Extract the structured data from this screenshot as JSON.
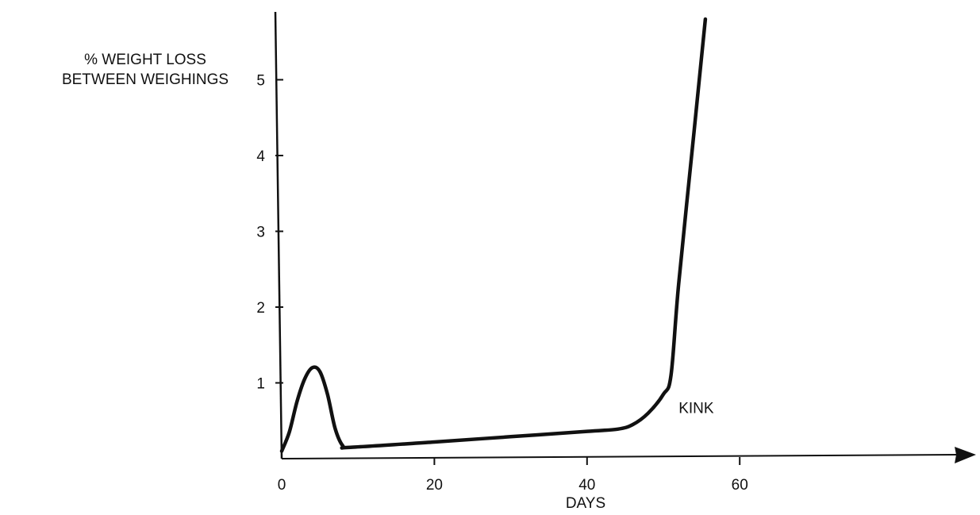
{
  "chart_data": {
    "type": "line",
    "ylabel_lines": [
      "% WEIGHT LOSS",
      "BETWEEN WEIGHINGS"
    ],
    "xlabel": "DAYS",
    "x_ticks": [
      0,
      20,
      40,
      60
    ],
    "y_ticks": [
      1,
      2,
      3,
      4,
      5
    ],
    "xlim": [
      0,
      90
    ],
    "ylim": [
      0,
      6
    ],
    "annotations": [
      {
        "text": "KINK",
        "x": 52,
        "y": 0.6
      }
    ],
    "series": [
      {
        "x": [
          0,
          1,
          2,
          3,
          4,
          5,
          6,
          7,
          8,
          9,
          20,
          30,
          40,
          44,
          46,
          48,
          50,
          51,
          52,
          54,
          55.5
        ],
        "values": [
          0.1,
          0.35,
          0.75,
          1.05,
          1.2,
          1.15,
          0.85,
          0.4,
          0.17,
          0.15,
          0.22,
          0.29,
          0.36,
          0.39,
          0.45,
          0.6,
          0.85,
          1.1,
          2.3,
          4.3,
          5.8
        ]
      }
    ],
    "colors": {
      "line": "#111111",
      "axis": "#111111"
    }
  }
}
